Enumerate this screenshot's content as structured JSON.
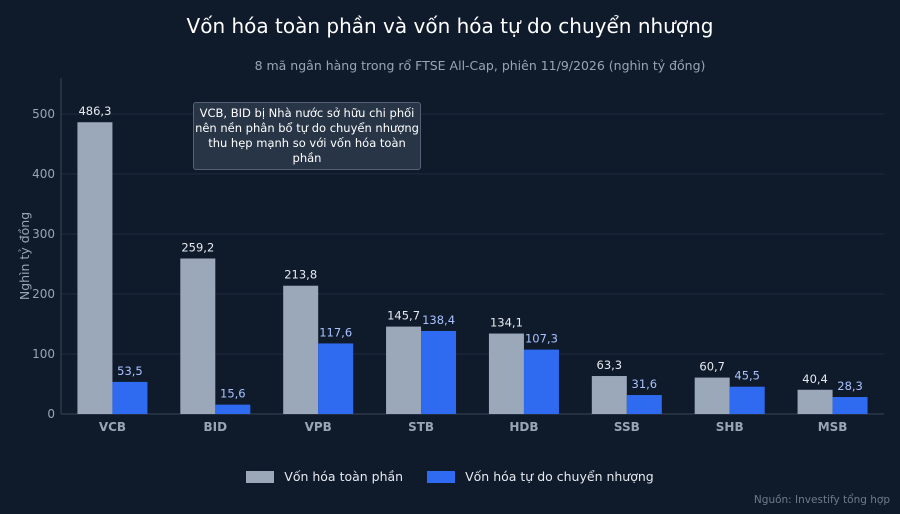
{
  "title": "Vốn hóa toàn phần và vốn hóa tự do chuyển nhượng",
  "subtitle": "8 mã ngân hàng trong rổ FTSE All-Cap, phiên 11/9/2026 (nghìn tỷ đồng)",
  "source": "Nguồn: Investify tổng hợp",
  "annotation": {
    "line1": "VCB, BID bị Nhà nước sở hữu chi phối",
    "line2": "nên nền phân bổ tự do chuyển nhượng",
    "line3": "thu hẹp mạnh so với vốn hóa toàn phần"
  },
  "colors": {
    "background": "#0f1a2b",
    "series1": "#9aa8ba",
    "series2": "#2f6bf0",
    "grid": "#1f2c3d",
    "axis_text": "#9aa4b2"
  },
  "chart_data": {
    "type": "bar",
    "title": "Vốn hóa toàn phần và vốn hóa tự do chuyển nhượng",
    "subtitle": "8 mã ngân hàng trong rổ FTSE All-Cap, phiên 11/9/2026 (nghìn tỷ đồng)",
    "xlabel": "",
    "ylabel": "Nghìn tỷ đồng",
    "ylim": [
      0,
      560
    ],
    "yticks": [
      "0",
      "100",
      "200",
      "300",
      "400",
      "500"
    ],
    "grid": true,
    "legend_position": "bottom-center",
    "categories": [
      "VCB",
      "BID",
      "VPB",
      "STB",
      "HDB",
      "SSB",
      "SHB",
      "MSB"
    ],
    "series": [
      {
        "name": "Vốn hóa toàn phần",
        "values": [
          486.3,
          259.2,
          213.8,
          145.7,
          134.1,
          63.3,
          60.7,
          40.4
        ],
        "labels": [
          "486,3",
          "259,2",
          "213,8",
          "145,7",
          "134,1",
          "63,3",
          "60,7",
          "40,4"
        ]
      },
      {
        "name": "Vốn hóa tự do chuyển nhượng",
        "values": [
          53.5,
          15.6,
          117.6,
          138.4,
          107.3,
          31.6,
          45.5,
          28.3
        ],
        "labels": [
          "53,5",
          "15,6",
          "117,6",
          "138,4",
          "107,3",
          "31,6",
          "45,5",
          "28,3"
        ]
      }
    ]
  }
}
